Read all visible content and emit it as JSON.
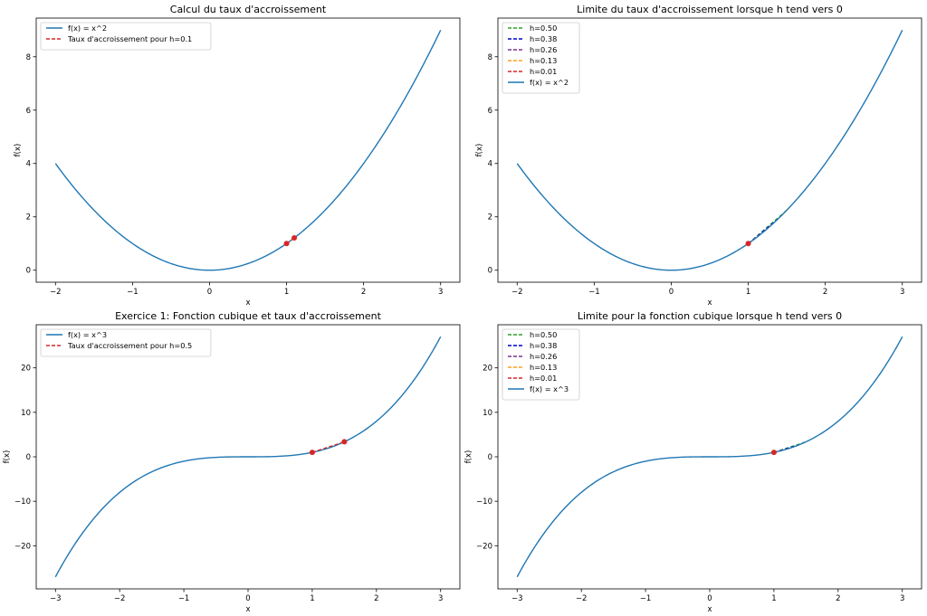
{
  "chart_data": [
    {
      "type": "line",
      "title": "Calcul du taux d'accroissement",
      "xlabel": "x",
      "ylabel": "f(x)",
      "xlim": [
        -2.25,
        3.25
      ],
      "ylim": [
        -0.45,
        9.45
      ],
      "xticks": [
        -2,
        -1,
        0,
        1,
        2,
        3
      ],
      "xtick_labels": [
        "−2",
        "−1",
        "0",
        "1",
        "2",
        "3"
      ],
      "yticks": [
        0,
        2,
        4,
        6,
        8
      ],
      "ytick_labels": [
        "0",
        "2",
        "4",
        "6",
        "8"
      ],
      "legend_position": "top-left",
      "grid": false,
      "series": [
        {
          "name": "f(x) = x^2",
          "function": "x^2",
          "x_range": [
            -2,
            3
          ],
          "color": "#1f77b4",
          "style": "solid"
        },
        {
          "name": "Taux d'accroissement pour h=0.1",
          "points": [
            [
              1,
              1
            ],
            [
              1.1,
              1.21
            ]
          ],
          "color": "#d62728",
          "style": "dashed",
          "markers": true
        }
      ]
    },
    {
      "type": "line",
      "title": "Limite du taux d'accroissement lorsque h tend vers 0",
      "xlabel": "x",
      "ylabel": "f(x)",
      "xlim": [
        -2.25,
        3.25
      ],
      "ylim": [
        -0.45,
        9.45
      ],
      "xticks": [
        -2,
        -1,
        0,
        1,
        2,
        3
      ],
      "xtick_labels": [
        "−2",
        "−1",
        "0",
        "1",
        "2",
        "3"
      ],
      "yticks": [
        0,
        2,
        4,
        6,
        8
      ],
      "ytick_labels": [
        "0",
        "2",
        "4",
        "6",
        "8"
      ],
      "legend_position": "top-left",
      "grid": false,
      "series": [
        {
          "name": "h=0.50",
          "points": [
            [
              1,
              1
            ],
            [
              1.5,
              2.25
            ]
          ],
          "color": "#2ca02c",
          "style": "dashed"
        },
        {
          "name": "h=0.38",
          "points": [
            [
              1,
              1
            ],
            [
              1.38,
              1.9044
            ]
          ],
          "color": "#0000cc",
          "style": "dashed"
        },
        {
          "name": "h=0.26",
          "points": [
            [
              1,
              1
            ],
            [
              1.26,
              1.5876
            ]
          ],
          "color": "#7b3294",
          "style": "dashed"
        },
        {
          "name": "h=0.13",
          "points": [
            [
              1,
              1
            ],
            [
              1.13,
              1.2769
            ]
          ],
          "color": "#ff9f1c",
          "style": "dashed"
        },
        {
          "name": "h=0.01",
          "points": [
            [
              1,
              1
            ],
            [
              1.01,
              1.0201
            ]
          ],
          "color": "#d62728",
          "style": "dashed"
        },
        {
          "name": "f(x) = x^2",
          "function": "x^2",
          "x_range": [
            -2,
            3
          ],
          "color": "#1f77b4",
          "style": "solid"
        }
      ],
      "marked_point": [
        1,
        1
      ]
    },
    {
      "type": "line",
      "title": "Exercice 1: Fonction cubique et taux d'accroissement",
      "xlabel": "x",
      "ylabel": "f(x)",
      "xlim": [
        -3.3,
        3.3
      ],
      "ylim": [
        -29.7,
        29.7
      ],
      "xticks": [
        -3,
        -2,
        -1,
        0,
        1,
        2,
        3
      ],
      "xtick_labels": [
        "−3",
        "−2",
        "−1",
        "0",
        "1",
        "2",
        "3"
      ],
      "yticks": [
        -20,
        -10,
        0,
        10,
        20
      ],
      "ytick_labels": [
        "−20",
        "−10",
        "0",
        "10",
        "20"
      ],
      "legend_position": "top-left",
      "grid": false,
      "series": [
        {
          "name": "f(x) = x^3",
          "function": "x^3",
          "x_range": [
            -3,
            3
          ],
          "color": "#1f77b4",
          "style": "solid"
        },
        {
          "name": "Taux d'accroissement pour h=0.5",
          "points": [
            [
              1,
              1
            ],
            [
              1.5,
              3.375
            ]
          ],
          "color": "#d62728",
          "style": "dashed",
          "markers": true
        }
      ]
    },
    {
      "type": "line",
      "title": "Limite pour la fonction cubique lorsque h tend vers 0",
      "xlabel": "x",
      "ylabel": "f(x)",
      "xlim": [
        -3.3,
        3.3
      ],
      "ylim": [
        -29.7,
        29.7
      ],
      "xticks": [
        -3,
        -2,
        -1,
        0,
        1,
        2,
        3
      ],
      "xtick_labels": [
        "−3",
        "−2",
        "−1",
        "0",
        "1",
        "2",
        "3"
      ],
      "yticks": [
        -20,
        -10,
        0,
        10,
        20
      ],
      "ytick_labels": [
        "−20",
        "−10",
        "0",
        "10",
        "20"
      ],
      "legend_position": "top-left",
      "grid": false,
      "series": [
        {
          "name": "h=0.50",
          "points": [
            [
              1,
              1
            ],
            [
              1.5,
              3.375
            ]
          ],
          "color": "#2ca02c",
          "style": "dashed"
        },
        {
          "name": "h=0.38",
          "points": [
            [
              1,
              1
            ],
            [
              1.38,
              2.628
            ]
          ],
          "color": "#0000cc",
          "style": "dashed"
        },
        {
          "name": "h=0.26",
          "points": [
            [
              1,
              1
            ],
            [
              1.26,
              2.0004
            ]
          ],
          "color": "#7b3294",
          "style": "dashed"
        },
        {
          "name": "h=0.13",
          "points": [
            [
              1,
              1
            ],
            [
              1.13,
              1.4429
            ]
          ],
          "color": "#ff9f1c",
          "style": "dashed"
        },
        {
          "name": "h=0.01",
          "points": [
            [
              1,
              1
            ],
            [
              1.01,
              1.0303
            ]
          ],
          "color": "#d62728",
          "style": "dashed"
        },
        {
          "name": "f(x) = x^3",
          "function": "x^3",
          "x_range": [
            -3,
            3
          ],
          "color": "#1f77b4",
          "style": "solid"
        }
      ],
      "marked_point": [
        1,
        1
      ]
    }
  ]
}
